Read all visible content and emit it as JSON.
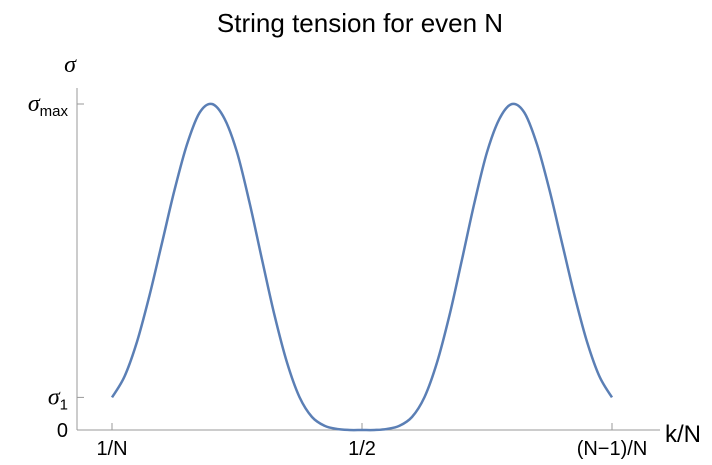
{
  "chart_data": {
    "type": "line",
    "title": "String tension for even N",
    "xlabel": "k/N",
    "ylabel_symbol": "σ",
    "x_ticks": [
      {
        "value": 0,
        "label": "1/N"
      },
      {
        "value": 0.5,
        "label": "1/2"
      },
      {
        "value": 1,
        "label": "(N−1)/N"
      }
    ],
    "y_ticks": [
      {
        "value": 0,
        "label": "0",
        "sym": "",
        "sub": ""
      },
      {
        "value": 0.1,
        "label": "",
        "sym": "σ",
        "sub": "1"
      },
      {
        "value": 1,
        "label": "",
        "sym": "σ",
        "sub": "max"
      }
    ],
    "xlim": [
      0,
      1
    ],
    "ylim": [
      0,
      1
    ],
    "grid": false,
    "series": [
      {
        "color": "#5b7fb5",
        "x": [
          0,
          0.025,
          0.05,
          0.075,
          0.1,
          0.125,
          0.15,
          0.175,
          0.2,
          0.225,
          0.25,
          0.275,
          0.3,
          0.325,
          0.35,
          0.375,
          0.4,
          0.425,
          0.45,
          0.475,
          0.5,
          0.525,
          0.55,
          0.575,
          0.6,
          0.625,
          0.65,
          0.675,
          0.7,
          0.725,
          0.75,
          0.775,
          0.8,
          0.825,
          0.85,
          0.875,
          0.9,
          0.925,
          0.95,
          0.975,
          1
        ],
        "y": [
          0.1,
          0.164,
          0.271,
          0.413,
          0.574,
          0.736,
          0.876,
          0.973,
          1,
          0.955,
          0.852,
          0.698,
          0.523,
          0.352,
          0.207,
          0.101,
          0.04,
          0.013,
          0.003,
          0,
          0,
          0,
          0.003,
          0.013,
          0.04,
          0.101,
          0.207,
          0.352,
          0.523,
          0.698,
          0.852,
          0.955,
          1,
          0.973,
          0.876,
          0.736,
          0.574,
          0.413,
          0.271,
          0.164,
          0.1
        ]
      }
    ]
  }
}
